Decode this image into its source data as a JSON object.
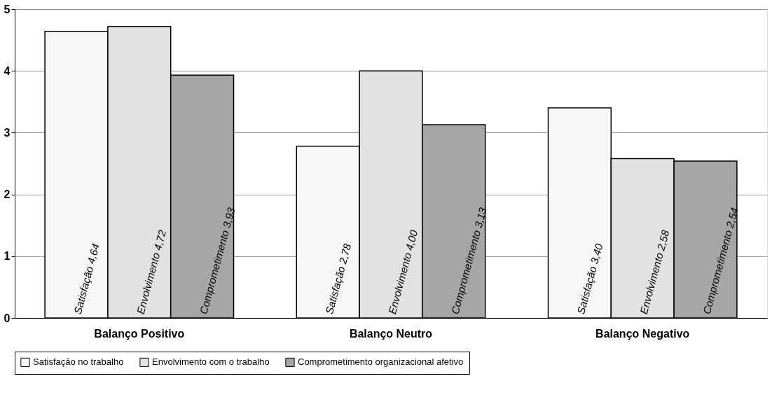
{
  "chart_data": {
    "type": "bar",
    "categories": [
      "Balanço Positivo",
      "Balanço Neutro",
      "Balanço Negativo",
      null
    ],
    "series": [
      {
        "name": "Satisfação no trabalho",
        "color": "#f7f7f7",
        "values": [
          4.64,
          2.78,
          3.4,
          null
        ],
        "value_labels": [
          "Satisfação 4,64",
          "Satisfação 2,78",
          "Satisfação 3,40",
          null
        ]
      },
      {
        "name": "Envolvimento com o trabalho",
        "color": "#e2e2e2",
        "values": [
          4.72,
          4.0,
          2.58,
          null
        ],
        "value_labels": [
          "Envolvimento 4,72",
          "Envolvimento 4,00",
          "Envolvimento 2,58",
          null
        ]
      },
      {
        "name": "Comprometimento organizacional afetivo",
        "color": "#a6a6a6",
        "values": [
          3.93,
          3.13,
          2.54,
          null
        ],
        "value_labels": [
          "Comprometimento 3,93",
          "Comprometimento 3,13",
          "Comprometimento 2,54",
          null
        ]
      }
    ],
    "ylim": [
      0,
      5
    ],
    "yticks": [
      0,
      1,
      2,
      3,
      4,
      5
    ],
    "grid": "y",
    "legend": "bottom"
  }
}
